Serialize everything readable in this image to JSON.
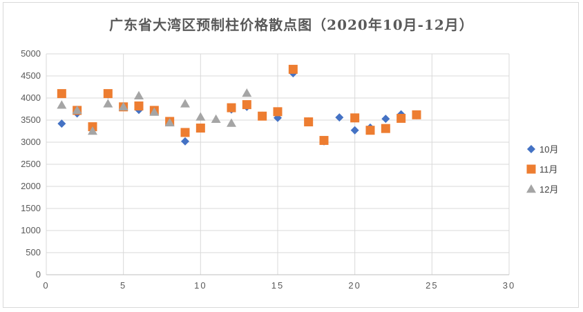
{
  "chart_data": {
    "type": "scatter",
    "title": "广东省大湾区预制柱价格散点图（2020年10月-12月）",
    "xlabel": "",
    "ylabel": "",
    "xlim": [
      0,
      30
    ],
    "ylim": [
      0,
      5000
    ],
    "x_ticks": [
      "0",
      "5",
      "10",
      "15",
      "20",
      "25",
      "30"
    ],
    "y_ticks": [
      "0",
      "500",
      "1000",
      "1500",
      "2000",
      "2500",
      "3000",
      "3500",
      "4000",
      "4500",
      "5000"
    ],
    "grid": true,
    "legend_position": "right",
    "series": [
      {
        "name": "10月",
        "marker": "diamond",
        "color": "#4472C4",
        "points": [
          [
            1,
            3420
          ],
          [
            2,
            3650
          ],
          [
            3,
            3330
          ],
          [
            4,
            4080
          ],
          [
            5,
            3800
          ],
          [
            6,
            3730
          ],
          [
            7,
            3700
          ],
          [
            8,
            3460
          ],
          [
            9,
            3020
          ],
          [
            10,
            3330
          ],
          [
            12,
            3740
          ],
          [
            13,
            3800
          ],
          [
            14,
            3600
          ],
          [
            15,
            3550
          ],
          [
            16,
            4560
          ],
          [
            17,
            3470
          ],
          [
            18,
            3020
          ],
          [
            19,
            3560
          ],
          [
            20,
            3270
          ],
          [
            21,
            3330
          ],
          [
            22,
            3530
          ],
          [
            23,
            3630
          ],
          [
            24,
            3610
          ]
        ]
      },
      {
        "name": "11月",
        "marker": "square",
        "color": "#ED7D31",
        "points": [
          [
            1,
            4100
          ],
          [
            2,
            3720
          ],
          [
            3,
            3350
          ],
          [
            4,
            4100
          ],
          [
            5,
            3800
          ],
          [
            6,
            3820
          ],
          [
            7,
            3720
          ],
          [
            8,
            3470
          ],
          [
            9,
            3220
          ],
          [
            10,
            3320
          ],
          [
            12,
            3780
          ],
          [
            13,
            3850
          ],
          [
            14,
            3590
          ],
          [
            15,
            3690
          ],
          [
            16,
            4650
          ],
          [
            17,
            3460
          ],
          [
            18,
            3040
          ],
          [
            20,
            3550
          ],
          [
            21,
            3270
          ],
          [
            22,
            3310
          ],
          [
            23,
            3540
          ],
          [
            24,
            3620
          ]
        ]
      },
      {
        "name": "12月",
        "marker": "triangle",
        "color": "#A5A5A5",
        "points": [
          [
            1,
            3840
          ],
          [
            2,
            3720
          ],
          [
            3,
            3250
          ],
          [
            4,
            3870
          ],
          [
            5,
            3800
          ],
          [
            6,
            4050
          ],
          [
            7,
            3680
          ],
          [
            8,
            3440
          ],
          [
            9,
            3870
          ],
          [
            10,
            3570
          ],
          [
            11,
            3520
          ],
          [
            12,
            3430
          ],
          [
            13,
            4110
          ]
        ]
      }
    ]
  }
}
